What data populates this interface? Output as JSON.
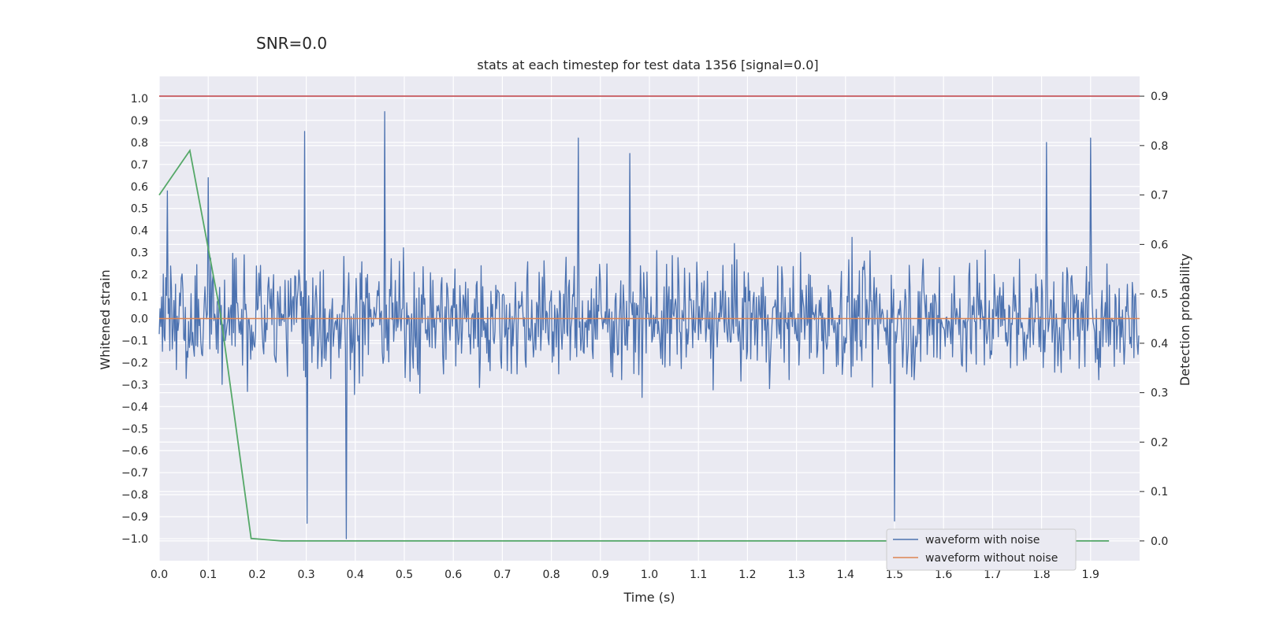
{
  "chart_data": {
    "type": "line",
    "suptitle": "SNR=0.0",
    "title": "stats at each timestep for test data 1356 [signal=0.0]",
    "xlabel": "Time (s)",
    "ylabel": "Whitened strain",
    "ylabel_right": "Detection probability",
    "xlim": [
      0.0,
      2.0
    ],
    "ylim": [
      -1.1,
      1.1
    ],
    "ylim_right": [
      -0.04,
      0.94
    ],
    "x_ticks": [
      "0.0",
      "0.1",
      "0.2",
      "0.3",
      "0.4",
      "0.5",
      "0.6",
      "0.7",
      "0.8",
      "0.9",
      "1.0",
      "1.1",
      "1.2",
      "1.3",
      "1.4",
      "1.5",
      "1.6",
      "1.7",
      "1.8",
      "1.9"
    ],
    "y_ticks": [
      "1.0",
      "0.9",
      "0.8",
      "0.7",
      "0.6",
      "0.5",
      "0.4",
      "0.3",
      "0.2",
      "0.1",
      "0.0",
      "−0.1",
      "−0.2",
      "−0.3",
      "−0.4",
      "−0.5",
      "−0.6",
      "−0.7",
      "−0.8",
      "−0.9",
      "−1.0"
    ],
    "y_right_ticks": [
      "0.9",
      "0.8",
      "0.7",
      "0.6",
      "0.5",
      "0.4",
      "0.3",
      "0.2",
      "0.1",
      "0.0"
    ],
    "legend": {
      "position": "lower-right",
      "entries": [
        {
          "name": "waveform with noise",
          "color": "#4c72b0"
        },
        {
          "name": "waveform without noise",
          "color": "#dd8452"
        }
      ]
    },
    "colors": {
      "noise": "#4c72b0",
      "clean": "#dd8452",
      "probability": "#55a868",
      "threshold": "#c44e52",
      "background": "#eaeaf2",
      "grid": "#ffffff"
    },
    "noise_series": {
      "name": "waveform with noise",
      "description": "dense random whitened-strain noise, roughly uniform amplitude",
      "sample_count": 1200,
      "approx_std": 0.22,
      "peaks": [
        {
          "x": 0.297,
          "y": 0.85
        },
        {
          "x": 0.46,
          "y": 0.94
        },
        {
          "x": 0.855,
          "y": 0.82
        },
        {
          "x": 0.96,
          "y": 0.75
        },
        {
          "x": 1.81,
          "y": 0.8
        },
        {
          "x": 1.9,
          "y": 0.82
        },
        {
          "x": 0.302,
          "y": -0.93
        },
        {
          "x": 0.381,
          "y": -1.0
        },
        {
          "x": 1.5,
          "y": -0.92
        },
        {
          "x": 0.1,
          "y": 0.64
        },
        {
          "x": 0.017,
          "y": 0.58
        }
      ]
    },
    "clean_series": {
      "name": "waveform without noise",
      "x": [
        0.0,
        2.0
      ],
      "y": [
        0.0,
        0.0
      ]
    },
    "probability_series": {
      "name": "detection probability",
      "axis": "right",
      "x": [
        0.0,
        0.0625,
        0.125,
        0.1875,
        0.25,
        0.3125,
        0.375,
        0.4375,
        0.5,
        0.5625,
        0.625,
        0.6875,
        0.75,
        0.8125,
        0.875,
        0.9375,
        1.0,
        1.0625,
        1.125,
        1.1875,
        1.25,
        1.3125,
        1.375,
        1.4375,
        1.5,
        1.5625,
        1.625,
        1.6875,
        1.75,
        1.8125,
        1.875,
        1.9375
      ],
      "y": [
        0.7,
        0.79,
        0.46,
        0.005,
        0.0,
        0.0,
        0.0,
        0.0,
        0.0,
        0.0,
        0.0,
        0.0,
        0.0,
        0.0,
        0.0,
        0.0,
        0.0,
        0.0,
        0.0,
        0.0,
        0.0,
        0.0,
        0.0,
        0.0,
        0.0,
        0.0,
        0.0,
        0.0,
        0.0,
        0.0,
        0.0,
        0.0
      ]
    },
    "threshold_line": {
      "name": "detection threshold",
      "axis": "right",
      "value": 0.9
    }
  }
}
